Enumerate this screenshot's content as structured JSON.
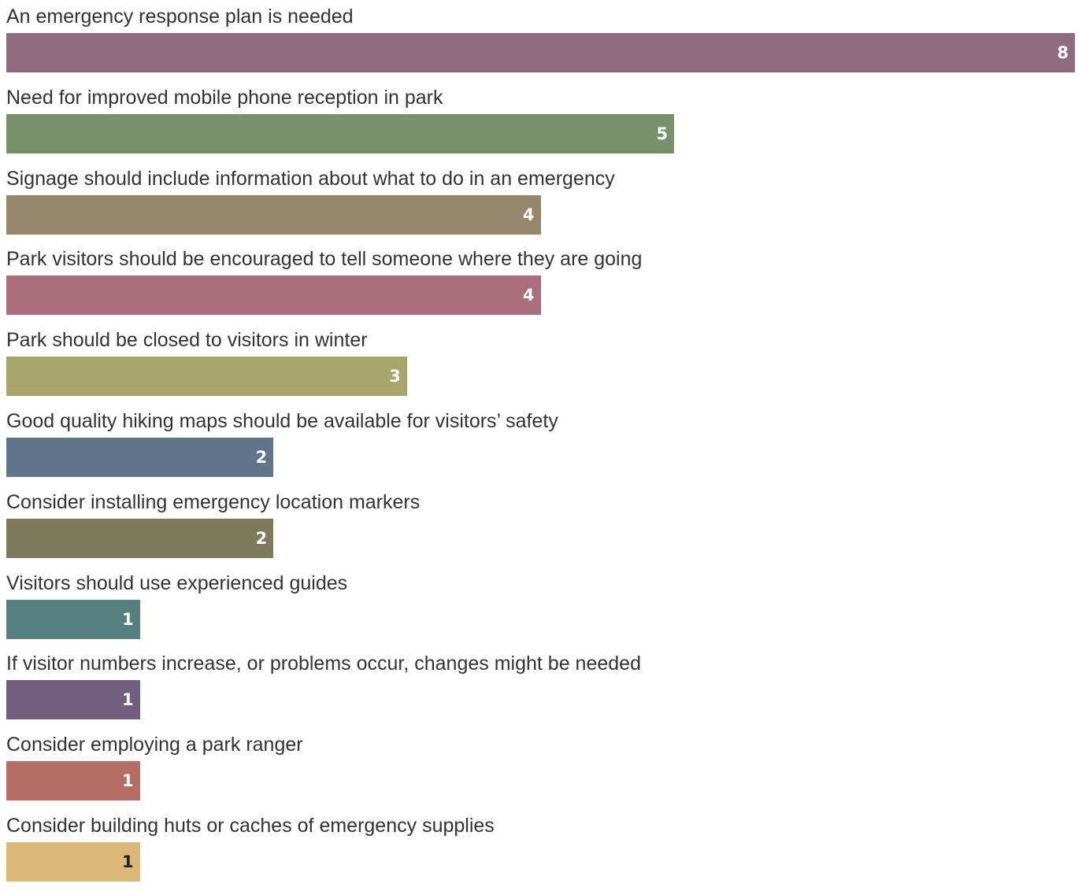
{
  "chart_data": {
    "type": "bar",
    "orientation": "horizontal",
    "categories": [
      "An emergency response plan is needed",
      "Need for improved mobile phone reception in park",
      "Signage should include information about what to do in an emergency",
      "Park visitors should be encouraged to tell someone where they are going",
      "Park should be closed to visitors in winter",
      "Good quality hiking maps should be available for visitors’ safety",
      "Consider installing emergency location markers",
      "Visitors should use experienced guides",
      "If visitor numbers increase, or problems occur, changes might be needed",
      "Consider employing a park ranger",
      "Consider building huts or caches of emergency supplies"
    ],
    "values": [
      8,
      5,
      4,
      4,
      3,
      2,
      2,
      1,
      1,
      1,
      1
    ],
    "colors": [
      "#8f6b80",
      "#76916a",
      "#96866c",
      "#a96d7c",
      "#a6a66c",
      "#607589",
      "#7c7a5a",
      "#568080",
      "#715f80",
      "#b56e66",
      "#dcb878"
    ],
    "value_label_colors": [
      "#ffffff",
      "#ffffff",
      "#ffffff",
      "#ffffff",
      "#ffffff",
      "#ffffff",
      "#ffffff",
      "#ffffff",
      "#ffffff",
      "#ffffff",
      "#222222"
    ],
    "xlim": [
      0,
      8
    ],
    "grid": false,
    "legend": "none",
    "title": "",
    "xlabel": "",
    "ylabel": ""
  }
}
